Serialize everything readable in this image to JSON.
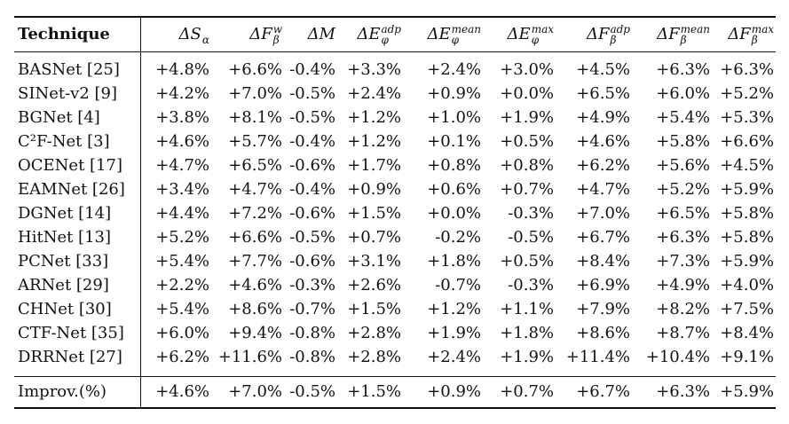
{
  "table": {
    "header": {
      "technique": "Technique",
      "columns": [
        {
          "symbol": "ΔS",
          "sub": "α",
          "sup": ""
        },
        {
          "symbol": "ΔF",
          "sub": "β",
          "sup": "w"
        },
        {
          "symbol": "ΔM",
          "sub": "",
          "sup": ""
        },
        {
          "symbol": "ΔE",
          "sub": "φ",
          "sup": "adp"
        },
        {
          "symbol": "ΔE",
          "sub": "φ",
          "sup": "mean"
        },
        {
          "symbol": "ΔE",
          "sub": "φ",
          "sup": "max"
        },
        {
          "symbol": "ΔF",
          "sub": "β",
          "sup": "adp"
        },
        {
          "symbol": "ΔF",
          "sub": "β",
          "sup": "mean"
        },
        {
          "symbol": "ΔF",
          "sub": "β",
          "sup": "max"
        }
      ]
    },
    "rows": [
      {
        "technique": "BASNet [25]",
        "values": [
          "+4.8%",
          "+6.6%",
          "-0.4%",
          "+3.3%",
          "+2.4%",
          "+3.0%",
          "+4.5%",
          "+6.3%",
          "+6.3%"
        ]
      },
      {
        "technique": "SINet-v2 [9]",
        "values": [
          "+4.2%",
          "+7.0%",
          "-0.5%",
          "+2.4%",
          "+0.9%",
          "+0.0%",
          "+6.5%",
          "+6.0%",
          "+5.2%"
        ]
      },
      {
        "technique": "BGNet [4]",
        "values": [
          "+3.8%",
          "+8.1%",
          "-0.5%",
          "+1.2%",
          "+1.0%",
          "+1.9%",
          "+4.9%",
          "+5.4%",
          "+5.3%"
        ]
      },
      {
        "technique": "C²F-Net [3]",
        "values": [
          "+4.6%",
          "+5.7%",
          "-0.4%",
          "+1.2%",
          "+0.1%",
          "+0.5%",
          "+4.6%",
          "+5.8%",
          "+6.6%"
        ]
      },
      {
        "technique": "OCENet [17]",
        "values": [
          "+4.7%",
          "+6.5%",
          "-0.6%",
          "+1.7%",
          "+0.8%",
          "+0.8%",
          "+6.2%",
          "+5.6%",
          "+4.5%"
        ]
      },
      {
        "technique": "EAMNet [26]",
        "values": [
          "+3.4%",
          "+4.7%",
          "-0.4%",
          "+0.9%",
          "+0.6%",
          "+0.7%",
          "+4.7%",
          "+5.2%",
          "+5.9%"
        ]
      },
      {
        "technique": "DGNet [14]",
        "values": [
          "+4.4%",
          "+7.2%",
          "-0.6%",
          "+1.5%",
          "+0.0%",
          "-0.3%",
          "+7.0%",
          "+6.5%",
          "+5.8%"
        ]
      },
      {
        "technique": "HitNet [13]",
        "values": [
          "+5.2%",
          "+6.6%",
          "-0.5%",
          "+0.7%",
          "-0.2%",
          "-0.5%",
          "+6.7%",
          "+6.3%",
          "+5.8%"
        ]
      },
      {
        "technique": "PCNet [33]",
        "values": [
          "+5.4%",
          "+7.7%",
          "-0.6%",
          "+3.1%",
          "+1.8%",
          "+0.5%",
          "+8.4%",
          "+7.3%",
          "+5.9%"
        ]
      },
      {
        "technique": "ARNet [29]",
        "values": [
          "+2.2%",
          "+4.6%",
          "-0.3%",
          "+2.6%",
          "-0.7%",
          "-0.3%",
          "+6.9%",
          "+4.9%",
          "+4.0%"
        ]
      },
      {
        "technique": "CHNet [30]",
        "values": [
          "+5.4%",
          "+8.6%",
          "-0.7%",
          "+1.5%",
          "+1.2%",
          "+1.1%",
          "+7.9%",
          "+8.2%",
          "+7.5%"
        ]
      },
      {
        "technique": "CTF-Net [35]",
        "values": [
          "+6.0%",
          "+9.4%",
          "-0.8%",
          "+2.8%",
          "+1.9%",
          "+1.8%",
          "+8.6%",
          "+8.7%",
          "+8.4%"
        ]
      },
      {
        "technique": "DRRNet [27]",
        "values": [
          "+6.2%",
          "+11.6%",
          "-0.8%",
          "+2.8%",
          "+2.4%",
          "+1.9%",
          "+11.4%",
          "+10.4%",
          "+9.1%"
        ]
      }
    ],
    "summary": {
      "technique": "Improv.(%)",
      "values": [
        "+4.6%",
        "+7.0%",
        "-0.5%",
        "+1.5%",
        "+0.9%",
        "+0.7%",
        "+6.7%",
        "+6.3%",
        "+5.9%"
      ]
    }
  }
}
